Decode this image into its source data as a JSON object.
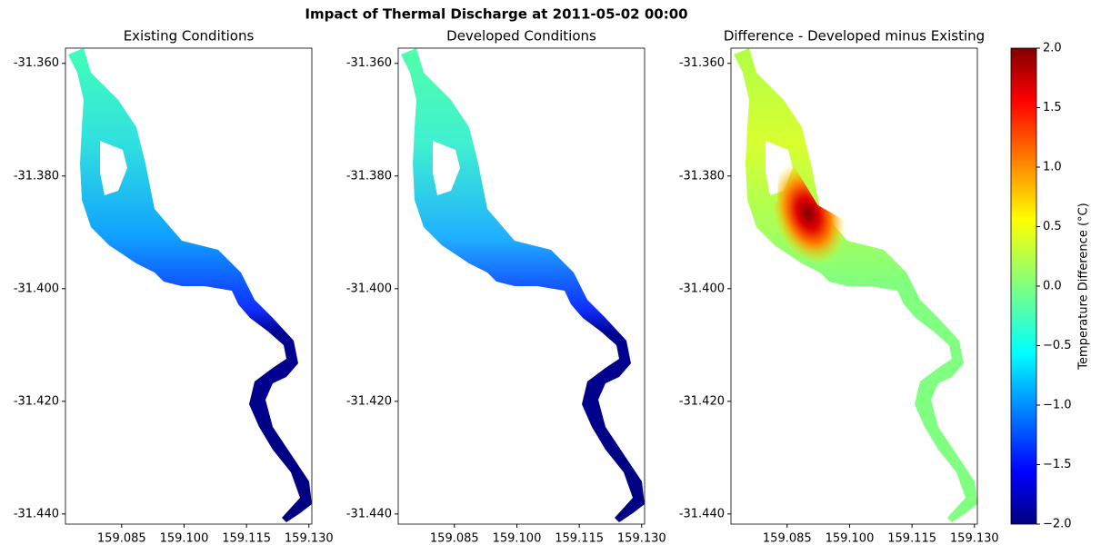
{
  "chart_data": {
    "type": "map",
    "title": "Impact of Thermal Discharge at 2011-05-02 00:00",
    "panels": [
      {
        "title": "Existing Conditions"
      },
      {
        "title": "Developed Conditions"
      },
      {
        "title": "Difference - Developed minus Existing"
      }
    ],
    "xlim": [
      159.0715,
      159.1307
    ],
    "xticks": [
      159.085,
      {
        "value": 159.1,
        "label": "159.100"
      },
      159.115,
      {
        "value": 159.13,
        "label": "159.130"
      }
    ],
    "ylim": [
      -31.4418,
      -31.3573
    ],
    "yticks": [
      {
        "value": -31.36,
        "label": "-31.360"
      },
      {
        "value": -31.38,
        "label": "-31.380"
      },
      {
        "value": -31.4,
        "label": "-31.400"
      },
      {
        "value": -31.42,
        "label": "-31.420"
      },
      {
        "value": -31.44,
        "label": "-31.440"
      }
    ],
    "colorbar": {
      "label": "Temperature Difference (°C)",
      "lim": [
        -2,
        2
      ],
      "ticks": [
        {
          "value": 2,
          "label": "2.0"
        },
        1.5,
        {
          "value": 1,
          "label": "1.0"
        },
        0.5,
        {
          "value": 0,
          "label": "0.0"
        },
        {
          "value": -0.5,
          "label": "−0.5"
        },
        {
          "value": -1,
          "label": "−1.0"
        },
        {
          "value": -1.5,
          "label": "−1.5"
        },
        {
          "value": -2,
          "label": "−2.0"
        }
      ]
    }
  }
}
